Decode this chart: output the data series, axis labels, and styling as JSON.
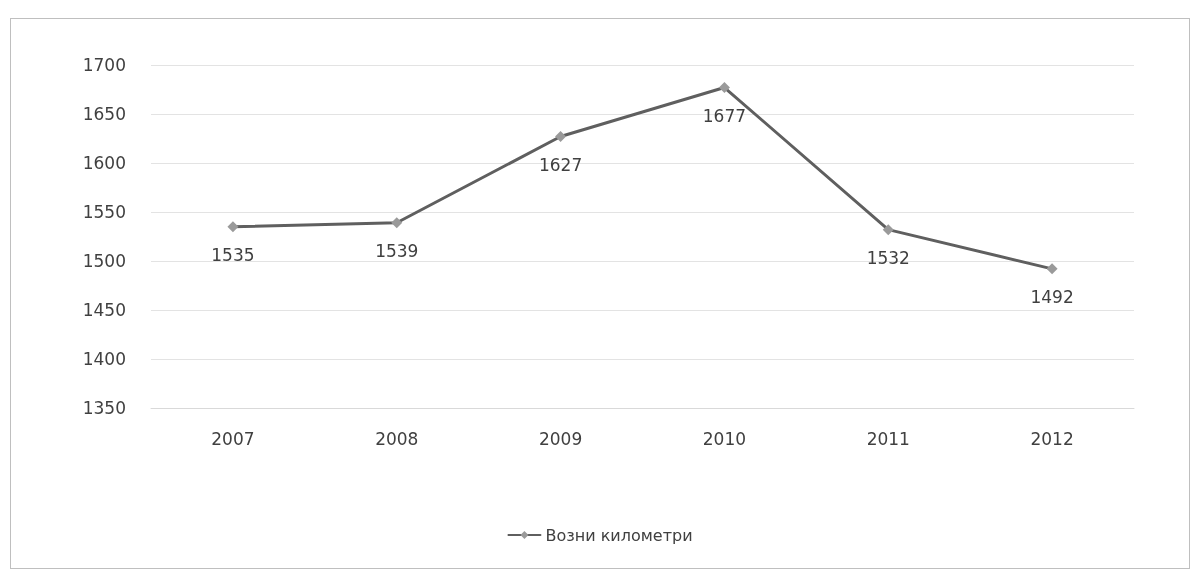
{
  "chart_data": {
    "type": "line",
    "categories": [
      "2007",
      "2008",
      "2009",
      "2010",
      "2011",
      "2012"
    ],
    "series": [
      {
        "name": "Возни километри",
        "color": "#5f5f5f",
        "values": [
          1535,
          1539,
          1627,
          1677,
          1532,
          1492
        ]
      }
    ],
    "ylim": [
      1350,
      1700
    ],
    "yticks": [
      1350,
      1400,
      1450,
      1500,
      1550,
      1600,
      1650,
      1700
    ],
    "grid": "y",
    "legend": "bottom",
    "marker": "diamond",
    "data_labels": true
  }
}
